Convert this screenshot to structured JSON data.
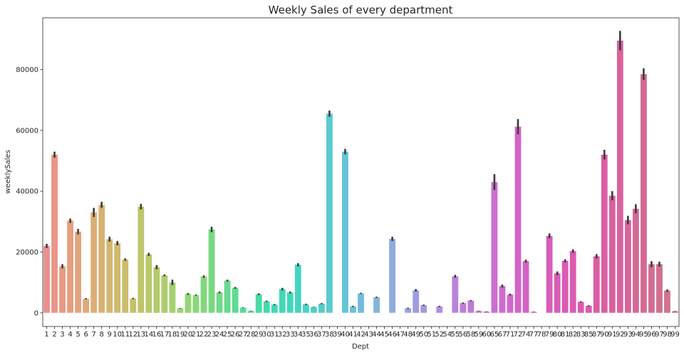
{
  "chart_data": {
    "type": "bar",
    "title": "Weekly Sales of every department",
    "xlabel": "Dept",
    "ylabel": "weeklySales",
    "ylim": [
      -4500,
      97000
    ],
    "yticks": [
      0,
      20000,
      40000,
      60000,
      80000
    ],
    "grid": false,
    "legend": "none",
    "categories": [
      "1",
      "2",
      "3",
      "4",
      "5",
      "6",
      "7",
      "8",
      "9",
      "10",
      "11",
      "12",
      "13",
      "14",
      "16",
      "17",
      "18",
      "19",
      "20",
      "21",
      "22",
      "23",
      "24",
      "25",
      "26",
      "27",
      "28",
      "29",
      "30",
      "31",
      "32",
      "33",
      "34",
      "35",
      "36",
      "37",
      "38",
      "39",
      "40",
      "41",
      "42",
      "43",
      "44",
      "45",
      "46",
      "47",
      "48",
      "49",
      "50",
      "51",
      "52",
      "54",
      "55",
      "56",
      "58",
      "59",
      "60",
      "65",
      "67",
      "71",
      "72",
      "74",
      "77",
      "78",
      "79",
      "80",
      "81",
      "82",
      "83",
      "85",
      "87",
      "90",
      "91",
      "92",
      "93",
      "94",
      "95",
      "96",
      "97",
      "98",
      "99"
    ],
    "values": [
      22000,
      52000,
      15300,
      30300,
      26700,
      4600,
      33000,
      35500,
      24200,
      22900,
      17500,
      4700,
      34900,
      19200,
      15000,
      12300,
      10000,
      1500,
      6200,
      5800,
      11900,
      27400,
      6700,
      10600,
      8200,
      1700,
      600,
      6100,
      3800,
      2700,
      7800,
      6700,
      15800,
      2800,
      1900,
      3000,
      65500,
      null,
      53000,
      2100,
      6400,
      null,
      5100,
      null,
      24300,
      null,
      1500,
      7400,
      2500,
      null,
      2100,
      null,
      12000,
      3200,
      4000,
      600,
      400,
      43000,
      8800,
      6000,
      61200,
      17000,
      300,
      null,
      25300,
      13000,
      17100,
      20300,
      3600,
      2300,
      18600,
      52000,
      38500,
      89500,
      30500,
      34200,
      78500,
      16000,
      16000,
      7300,
      500
    ],
    "errors": [
      700,
      1000,
      700,
      700,
      900,
      200,
      1500,
      1000,
      800,
      700,
      400,
      200,
      900,
      500,
      700,
      300,
      900,
      100,
      300,
      200,
      400,
      900,
      300,
      300,
      300,
      100,
      100,
      300,
      200,
      200,
      400,
      300,
      500,
      200,
      100,
      200,
      1000,
      0,
      900,
      200,
      200,
      0,
      200,
      0,
      700,
      0,
      200,
      400,
      200,
      0,
      200,
      0,
      500,
      200,
      200,
      100,
      100,
      2600,
      500,
      300,
      2500,
      500,
      100,
      0,
      800,
      600,
      500,
      600,
      200,
      200,
      700,
      1600,
      1500,
      3200,
      1400,
      1500,
      1900,
      1000,
      800,
      400,
      100
    ],
    "colors": [
      "#e9908d",
      "#e99588",
      "#e79a83",
      "#e59f80",
      "#e2a47c",
      "#dfa979",
      "#dcae75",
      "#d8b272",
      "#d4b670",
      "#cfba6e",
      "#cabe6c",
      "#c5c26a",
      "#bfc56a",
      "#b9c86a",
      "#b2cb6b",
      "#abce6c",
      "#a4d16e",
      "#9cd371",
      "#94d574",
      "#8bd678",
      "#82d87c",
      "#79d981",
      "#70da87",
      "#67da8c",
      "#5edb92",
      "#56db98",
      "#4edb9e",
      "#48dba4",
      "#43daaa",
      "#41d9b0",
      "#40d8b5",
      "#41d7ba",
      "#44d5bf",
      "#48d3c4",
      "#4dd0c8",
      "#53ceCC",
      "#59cbd0",
      "#5fc8d3",
      "#66c4d6",
      "#6cc1d8",
      "#73bdda",
      "#79b9dc",
      "#80b5de",
      "#86b0df",
      "#8cacdf",
      "#92a7e0",
      "#98a2e0",
      "#9e9de0",
      "#a498df",
      "#a993df",
      "#ae8ede",
      "#b389dc",
      "#b884db",
      "#bc7fd9",
      "#c07ad7",
      "#c476d5",
      "#c872d2",
      "#cb6ed0",
      "#ce6acd",
      "#d167ca",
      "#d364c7",
      "#d562c4",
      "#d760c1",
      "#d85ebe",
      "#d95dba",
      "#da5cb7",
      "#da5bb4",
      "#db5bb0",
      "#db5bad",
      "#db5ca9",
      "#da5da6",
      "#da5ea3",
      "#d960a0",
      "#d8629d",
      "#d7649a",
      "#d66797",
      "#d46a94",
      "#d36d92",
      "#d1708f",
      "#cf748d",
      "#cd778b"
    ]
  }
}
